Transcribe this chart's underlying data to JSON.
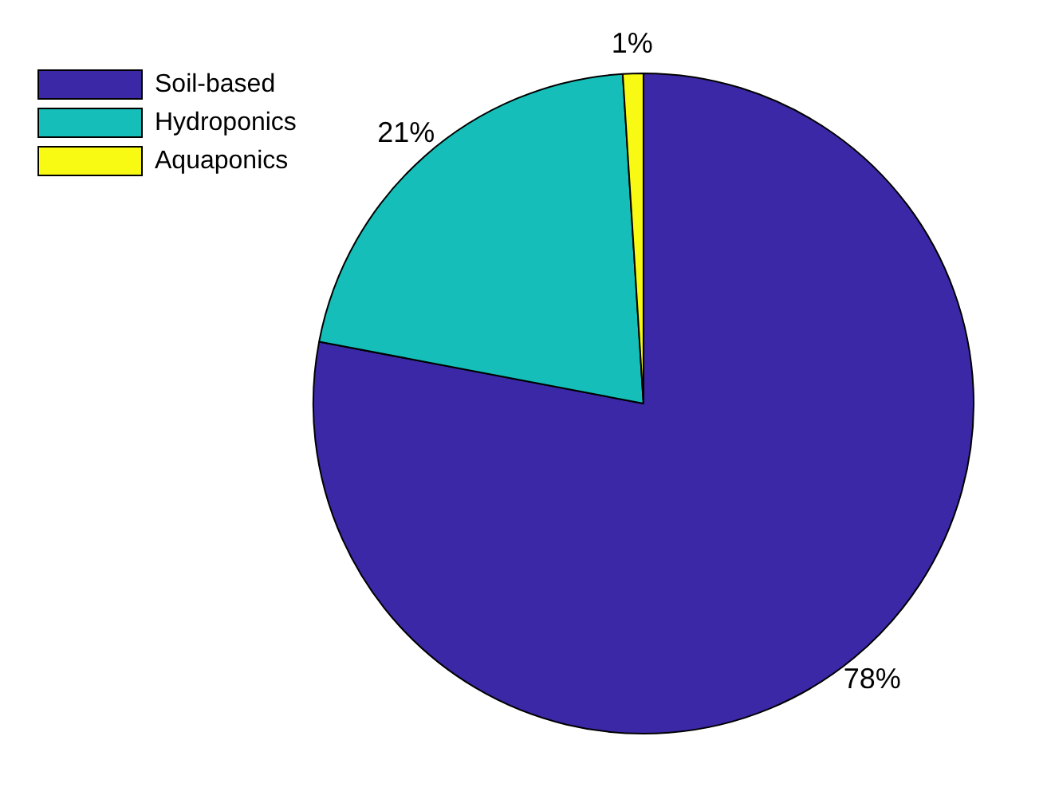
{
  "chart_data": {
    "type": "pie",
    "categories": [
      "Soil-based",
      "Hydroponics",
      "Aquaponics"
    ],
    "values": [
      78,
      21,
      1
    ],
    "colors": [
      "#3b28a6",
      "#15beb8",
      "#f8fa14"
    ],
    "value_labels": [
      "78%",
      "21%",
      "1%"
    ],
    "legend": "top left"
  }
}
